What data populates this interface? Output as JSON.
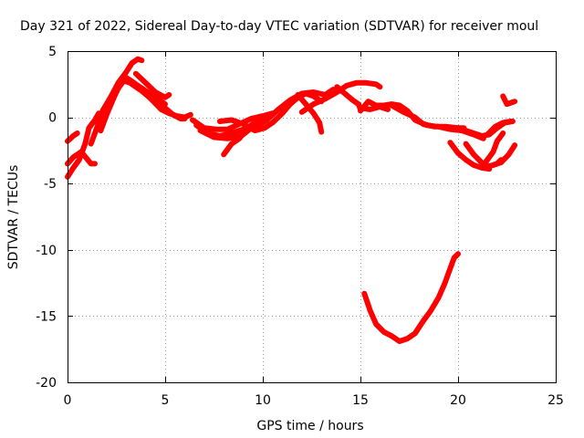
{
  "chart_data": {
    "type": "line",
    "title": "Day 321 of 2022, Sidereal Day-to-day VTEC variation (SDTVAR) for receiver moul",
    "xlabel": "GPS time / hours",
    "ylabel": "SDTVAR / TECUs",
    "xlim": [
      0,
      25
    ],
    "ylim": [
      -20,
      5
    ],
    "xticks": [
      0,
      5,
      10,
      15,
      20,
      25
    ],
    "xtick_labels": [
      "0",
      "5",
      "10",
      "15",
      "20",
      "25"
    ],
    "yticks": [
      5,
      0,
      -5,
      -10,
      -15,
      -20
    ],
    "ytick_labels": [
      "5",
      "0",
      "-5",
      "-10",
      "-15",
      "-20"
    ],
    "grid": true,
    "color": "#ff0000",
    "series": [
      {
        "name": "arc-1",
        "points": [
          [
            0.0,
            -3.5
          ],
          [
            0.3,
            -3.0
          ],
          [
            0.7,
            -2.6
          ],
          [
            1.2,
            -3.5
          ],
          [
            1.4,
            -3.5
          ]
        ]
      },
      {
        "name": "arc-2",
        "points": [
          [
            0.0,
            -4.5
          ],
          [
            0.3,
            -3.8
          ],
          [
            0.6,
            -3.2
          ],
          [
            0.9,
            -2.0
          ],
          [
            1.1,
            -0.8
          ],
          [
            1.4,
            -0.2
          ],
          [
            1.6,
            0.3
          ]
        ]
      },
      {
        "name": "arc-3",
        "points": [
          [
            0.0,
            -1.8
          ],
          [
            0.3,
            -1.4
          ],
          [
            0.5,
            -1.2
          ]
        ]
      },
      {
        "name": "arc-4",
        "points": [
          [
            1.2,
            -2.0
          ],
          [
            1.5,
            -0.8
          ],
          [
            1.8,
            0.5
          ],
          [
            2.2,
            1.5
          ],
          [
            2.6,
            2.6
          ],
          [
            3.0,
            3.4
          ],
          [
            3.3,
            4.1
          ],
          [
            3.6,
            4.4
          ],
          [
            3.8,
            4.3
          ]
        ]
      },
      {
        "name": "arc-5",
        "points": [
          [
            1.7,
            -1.0
          ],
          [
            2.0,
            0.2
          ],
          [
            2.4,
            1.6
          ],
          [
            2.8,
            2.8
          ],
          [
            3.2,
            2.6
          ],
          [
            3.6,
            2.2
          ],
          [
            4.0,
            1.8
          ],
          [
            4.4,
            1.2
          ],
          [
            4.8,
            0.6
          ],
          [
            5.2,
            0.3
          ],
          [
            5.6,
            0.1
          ],
          [
            6.0,
            0.0
          ],
          [
            6.3,
            0.2
          ]
        ]
      },
      {
        "name": "arc-6",
        "points": [
          [
            2.6,
            2.2
          ],
          [
            3.0,
            3.0
          ],
          [
            3.4,
            2.6
          ],
          [
            3.8,
            2.0
          ],
          [
            4.2,
            1.5
          ],
          [
            4.6,
            1.2
          ],
          [
            5.0,
            0.7
          ],
          [
            5.4,
            0.2
          ],
          [
            5.8,
            -0.1
          ],
          [
            6.0,
            -0.1
          ]
        ]
      },
      {
        "name": "arc-7",
        "points": [
          [
            3.2,
            2.8
          ],
          [
            3.7,
            2.3
          ],
          [
            4.2,
            1.8
          ],
          [
            4.8,
            1.2
          ],
          [
            5.0,
            1.0
          ]
        ]
      },
      {
        "name": "arc-8",
        "points": [
          [
            3.5,
            3.3
          ],
          [
            4.0,
            2.6
          ],
          [
            4.5,
            1.9
          ],
          [
            5.0,
            1.5
          ],
          [
            5.2,
            1.7
          ]
        ]
      },
      {
        "name": "arc-9",
        "points": [
          [
            6.4,
            -0.2
          ],
          [
            7.0,
            -0.8
          ],
          [
            7.6,
            -0.9
          ],
          [
            8.2,
            -0.9
          ],
          [
            8.8,
            -0.5
          ],
          [
            9.4,
            -0.1
          ],
          [
            10.0,
            0.1
          ],
          [
            10.5,
            0.3
          ]
        ]
      },
      {
        "name": "arc-10",
        "points": [
          [
            6.6,
            -0.6
          ],
          [
            7.2,
            -1.2
          ],
          [
            7.8,
            -1.4
          ],
          [
            8.4,
            -1.2
          ],
          [
            9.0,
            -0.9
          ],
          [
            9.6,
            -0.5
          ],
          [
            10.1,
            0.0
          ],
          [
            10.5,
            0.2
          ]
        ]
      },
      {
        "name": "arc-11",
        "points": [
          [
            6.8,
            -1.0
          ],
          [
            7.5,
            -1.5
          ],
          [
            8.2,
            -1.6
          ],
          [
            8.9,
            -1.4
          ],
          [
            9.5,
            -0.7
          ],
          [
            10.0,
            -0.4
          ],
          [
            10.2,
            -0.2
          ]
        ]
      },
      {
        "name": "arc-12",
        "points": [
          [
            8.0,
            -2.8
          ],
          [
            8.4,
            -2.0
          ],
          [
            8.8,
            -1.6
          ],
          [
            9.2,
            -0.8
          ],
          [
            9.6,
            -0.4
          ],
          [
            10.0,
            0.0
          ],
          [
            10.4,
            0.2
          ]
        ]
      },
      {
        "name": "arc-13",
        "points": [
          [
            7.8,
            -0.3
          ],
          [
            8.4,
            -0.2
          ],
          [
            9.0,
            -0.5
          ],
          [
            9.6,
            -1.0
          ],
          [
            10.1,
            -0.8
          ],
          [
            10.5,
            -0.4
          ],
          [
            11.0,
            0.3
          ],
          [
            11.4,
            1.0
          ],
          [
            11.8,
            1.5
          ],
          [
            12.2,
            1.8
          ],
          [
            12.6,
            1.6
          ],
          [
            13.0,
            1.2
          ]
        ]
      },
      {
        "name": "arc-14",
        "points": [
          [
            10.2,
            -0.2
          ],
          [
            10.8,
            0.6
          ],
          [
            11.4,
            1.3
          ],
          [
            12.0,
            1.8
          ],
          [
            12.6,
            1.9
          ],
          [
            13.2,
            1.7
          ],
          [
            13.6,
            2.1
          ],
          [
            14.0,
            2.0
          ]
        ]
      },
      {
        "name": "arc-15",
        "points": [
          [
            11.8,
            1.7
          ],
          [
            12.2,
            1.0
          ],
          [
            12.6,
            0.3
          ],
          [
            12.9,
            -0.4
          ],
          [
            13.0,
            -1.1
          ]
        ]
      },
      {
        "name": "arc-16",
        "points": [
          [
            12.0,
            0.4
          ],
          [
            12.6,
            1.0
          ],
          [
            13.2,
            1.4
          ],
          [
            13.8,
            1.9
          ],
          [
            14.3,
            2.4
          ],
          [
            14.8,
            2.6
          ],
          [
            15.3,
            2.6
          ],
          [
            15.8,
            2.5
          ],
          [
            16.0,
            2.3
          ]
        ]
      },
      {
        "name": "arc-17",
        "points": [
          [
            13.8,
            2.3
          ],
          [
            14.2,
            1.8
          ],
          [
            14.6,
            1.3
          ],
          [
            14.9,
            1.0
          ],
          [
            15.0,
            0.6
          ]
        ]
      },
      {
        "name": "arc-18",
        "points": [
          [
            15.0,
            0.5
          ],
          [
            15.4,
            1.2
          ],
          [
            15.8,
            0.9
          ],
          [
            16.2,
            0.9
          ],
          [
            16.6,
            1.0
          ],
          [
            17.0,
            0.9
          ],
          [
            17.3,
            0.6
          ]
        ]
      },
      {
        "name": "arc-19",
        "points": [
          [
            15.0,
            0.7
          ],
          [
            15.5,
            0.6
          ],
          [
            16.0,
            0.8
          ],
          [
            16.4,
            0.6
          ]
        ]
      },
      {
        "name": "arc-20",
        "points": [
          [
            16.6,
            0.9
          ],
          [
            17.2,
            0.4
          ],
          [
            17.8,
            0.0
          ],
          [
            18.2,
            -0.5
          ],
          [
            18.8,
            -0.7
          ],
          [
            19.4,
            -0.7
          ],
          [
            20.0,
            -0.8
          ],
          [
            20.3,
            -0.8
          ]
        ]
      },
      {
        "name": "arc-21",
        "points": [
          [
            17.4,
            0.5
          ],
          [
            17.8,
            -0.2
          ],
          [
            18.4,
            -0.6
          ],
          [
            19.0,
            -0.7
          ],
          [
            19.6,
            -0.9
          ],
          [
            20.2,
            -1.0
          ],
          [
            20.8,
            -1.3
          ],
          [
            21.3,
            -1.6
          ]
        ]
      },
      {
        "name": "arc-22",
        "points": [
          [
            20.0,
            -0.8
          ],
          [
            20.6,
            -1.1
          ],
          [
            21.2,
            -1.4
          ],
          [
            21.6,
            -1.3
          ],
          [
            22.0,
            -0.8
          ],
          [
            22.4,
            -0.4
          ],
          [
            22.8,
            -0.3
          ]
        ]
      },
      {
        "name": "arc-23",
        "points": [
          [
            19.6,
            -1.9
          ],
          [
            20.0,
            -2.7
          ],
          [
            20.4,
            -3.2
          ],
          [
            20.8,
            -3.6
          ],
          [
            21.2,
            -3.8
          ],
          [
            21.6,
            -3.9
          ]
        ]
      },
      {
        "name": "arc-24",
        "points": [
          [
            20.4,
            -2.0
          ],
          [
            20.8,
            -2.8
          ],
          [
            21.2,
            -3.4
          ],
          [
            21.6,
            -3.7
          ],
          [
            22.0,
            -3.5
          ],
          [
            22.2,
            -3.2
          ]
        ]
      },
      {
        "name": "arc-25",
        "points": [
          [
            21.8,
            -3.6
          ],
          [
            22.2,
            -3.4
          ],
          [
            22.6,
            -2.8
          ],
          [
            22.9,
            -2.1
          ]
        ]
      },
      {
        "name": "arc-26",
        "points": [
          [
            21.4,
            -3.4
          ],
          [
            21.8,
            -2.6
          ],
          [
            22.0,
            -1.8
          ],
          [
            22.3,
            -1.2
          ]
        ]
      },
      {
        "name": "arc-27",
        "points": [
          [
            21.5,
            -1.3
          ],
          [
            21.9,
            -0.7
          ],
          [
            22.3,
            -0.4
          ],
          [
            22.7,
            -0.3
          ]
        ]
      },
      {
        "name": "arc-28",
        "points": [
          [
            22.3,
            1.6
          ],
          [
            22.5,
            1.0
          ],
          [
            22.9,
            1.2
          ]
        ]
      },
      {
        "name": "arc-29",
        "points": [
          [
            15.2,
            -13.3
          ],
          [
            15.5,
            -14.6
          ],
          [
            15.8,
            -15.6
          ],
          [
            16.2,
            -16.2
          ],
          [
            16.6,
            -16.5
          ],
          [
            17.0,
            -16.9
          ],
          [
            17.4,
            -16.7
          ],
          [
            17.8,
            -16.3
          ],
          [
            18.2,
            -15.4
          ],
          [
            18.6,
            -14.6
          ],
          [
            19.0,
            -13.6
          ],
          [
            19.3,
            -12.6
          ],
          [
            19.6,
            -11.4
          ],
          [
            19.8,
            -10.6
          ],
          [
            20.0,
            -10.3
          ]
        ]
      }
    ]
  }
}
